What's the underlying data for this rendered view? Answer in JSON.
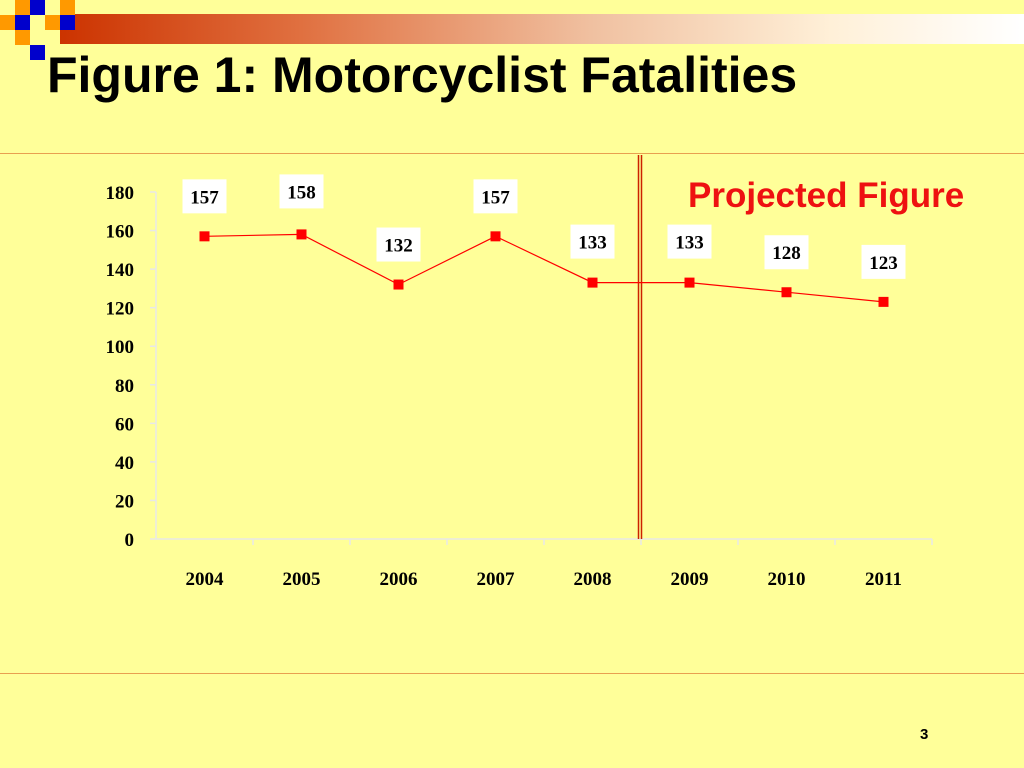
{
  "slide": {
    "title": "Figure 1: Motorcyclist Fatalities",
    "page_number": "3"
  },
  "colors": {
    "background": "#ffff99",
    "series": "#ff0000",
    "annotation_text": "#ee1111",
    "divider": "#cc2200",
    "accent_orange": "#ff9900",
    "accent_blue": "#0000cc"
  },
  "chart_data": {
    "type": "line",
    "title": "",
    "xlabel": "",
    "ylabel": "",
    "categories": [
      "2004",
      "2005",
      "2006",
      "2007",
      "2008",
      "2009",
      "2010",
      "2011"
    ],
    "series": [
      {
        "values": [
          157,
          158,
          132,
          157,
          133,
          133,
          128,
          123
        ]
      }
    ],
    "ylim": [
      0,
      180
    ],
    "yticks": [
      0,
      20,
      40,
      60,
      80,
      100,
      120,
      140,
      160,
      180
    ],
    "grid": false,
    "annotation": {
      "text": "Projected Figure",
      "divider_after_category": "2008"
    }
  }
}
